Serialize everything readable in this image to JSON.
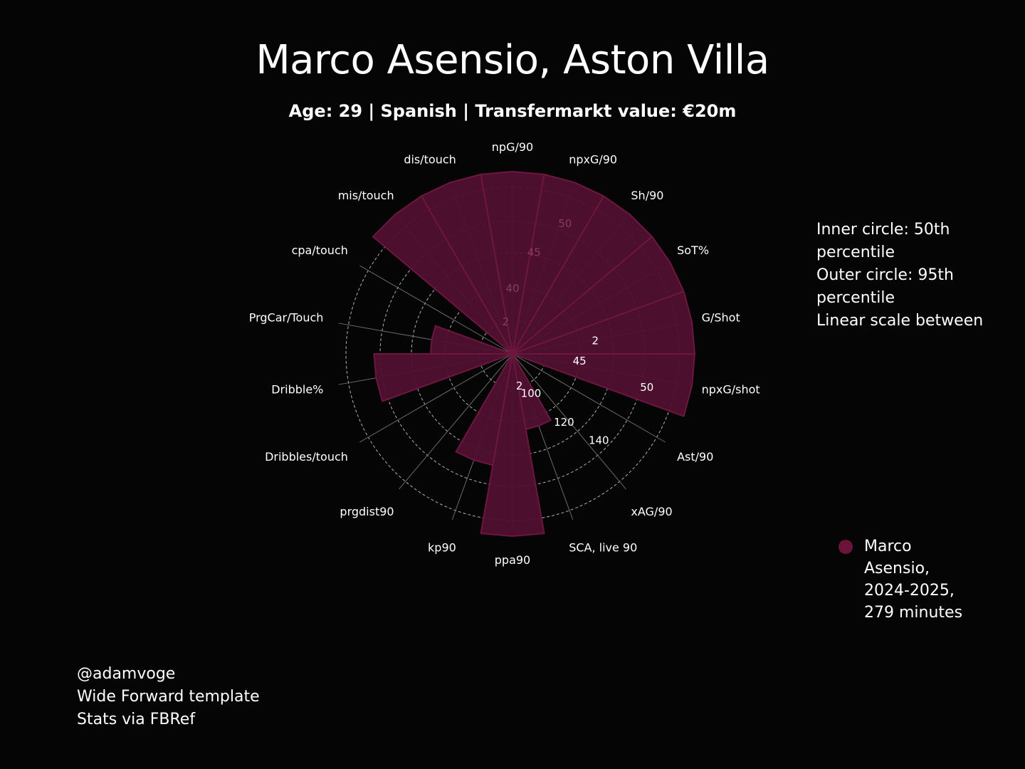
{
  "header": {
    "title": "Marco Asensio, Aston Villa",
    "subtitle": "Age: 29 | Spanish | Transfermarkt value: €20m"
  },
  "notes": {
    "line1": "Inner circle: 50th percentile",
    "line2": "Outer circle: 95th percentile",
    "line3": "Linear scale between"
  },
  "legend": {
    "label": "Marco Asensio, 2024-2025, 279 minutes",
    "color": "#6b1338"
  },
  "credits": {
    "line1": "@adamvoge",
    "line2": "Wide Forward template",
    "line3": "Stats via FBRef"
  },
  "colors": {
    "background": "#050505",
    "fill": "#50102f",
    "stroke": "#6e1640",
    "grid": "#cfcfcf"
  },
  "chart_data": {
    "type": "radar",
    "categories": [
      "npG/90",
      "npxG/90",
      "Sh/90",
      "SoT%",
      "G/Shot",
      "npxG/shot",
      "Ast/90",
      "xAG/90",
      "SCA, live 90",
      "ppa90",
      "kp90",
      "prgdist90",
      "Dribbles/touch",
      "Dribble%",
      "PrgCar/Touch",
      "cpa/touch",
      "mis/touch",
      "dis/touch"
    ],
    "series": [
      {
        "name": "Marco Asensio, 2024-2025, 279 minutes",
        "values": [
          1.0,
          1.0,
          1.0,
          1.0,
          1.0,
          1.0,
          0.0,
          0.0,
          0.42,
          1.0,
          0.62,
          0.0,
          0.0,
          0.76,
          0.45,
          0.0,
          1.0,
          1.0
        ]
      }
    ],
    "rlim": [
      0,
      1
    ],
    "rings": 5,
    "grid": true,
    "tick_labels": [
      {
        "text": "2",
        "angle_deg": -12,
        "r": 0.18
      },
      {
        "text": "40",
        "angle_deg": 0,
        "r": 0.36
      },
      {
        "text": "45",
        "angle_deg": 12,
        "r": 0.57
      },
      {
        "text": "50",
        "angle_deg": 22,
        "r": 0.77
      },
      {
        "text": "2",
        "angle_deg": 168,
        "r": 0.18
      },
      {
        "text": "100",
        "angle_deg": 155,
        "r": 0.24
      },
      {
        "text": "120",
        "angle_deg": 143,
        "r": 0.47
      },
      {
        "text": "140",
        "angle_deg": 135,
        "r": 0.67
      },
      {
        "text": "45",
        "angle_deg": 96,
        "r": 0.37
      },
      {
        "text": "2",
        "angle_deg": 81,
        "r": 0.46
      },
      {
        "text": "50",
        "angle_deg": 104,
        "r": 0.76
      }
    ]
  }
}
